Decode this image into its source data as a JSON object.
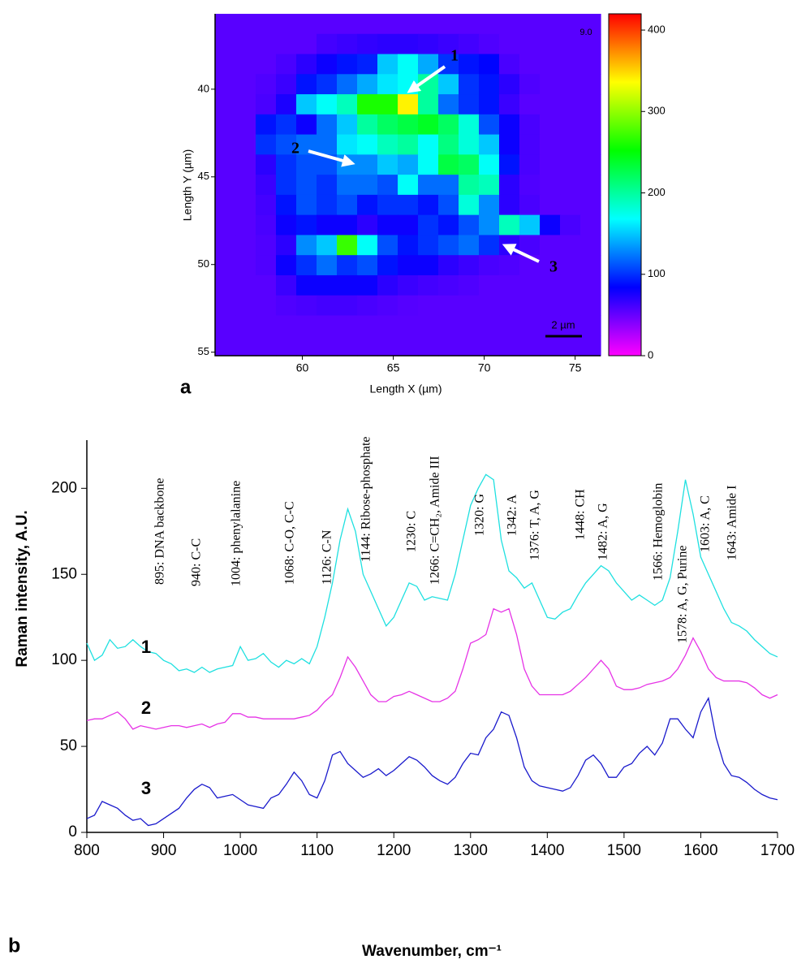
{
  "chart_data": [
    {
      "type": "heatmap",
      "panel_label": "a",
      "xlabel": "Length X (µm)",
      "ylabel": "Length Y (µm)",
      "xlim": [
        55.2,
        76.4
      ],
      "ylim": [
        55.2,
        35.7
      ],
      "xticks": [
        60,
        65,
        70,
        75
      ],
      "yticks": [
        40,
        45,
        50,
        55
      ],
      "z": [
        [
          55,
          55,
          55,
          55,
          55,
          55,
          55,
          55,
          55,
          55,
          55,
          55,
          55,
          55,
          55,
          55,
          55,
          55,
          55
        ],
        [
          55,
          55,
          55,
          55,
          55,
          62,
          65,
          68,
          70,
          70,
          68,
          65,
          62,
          58,
          55,
          55,
          55,
          55,
          55
        ],
        [
          55,
          55,
          55,
          60,
          70,
          80,
          90,
          95,
          150,
          170,
          140,
          100,
          90,
          85,
          60,
          55,
          55,
          55,
          55
        ],
        [
          55,
          55,
          58,
          65,
          90,
          100,
          120,
          140,
          160,
          170,
          200,
          150,
          100,
          90,
          70,
          58,
          55,
          55,
          55
        ],
        [
          55,
          55,
          60,
          75,
          150,
          170,
          190,
          260,
          260,
          340,
          200,
          120,
          100,
          90,
          65,
          55,
          55,
          55,
          55
        ],
        [
          55,
          55,
          90,
          100,
          80,
          120,
          150,
          200,
          220,
          230,
          240,
          220,
          180,
          110,
          80,
          60,
          55,
          55,
          55
        ],
        [
          55,
          55,
          100,
          110,
          120,
          120,
          160,
          170,
          190,
          200,
          170,
          210,
          180,
          150,
          80,
          60,
          55,
          55,
          55
        ],
        [
          55,
          55,
          70,
          100,
          110,
          110,
          130,
          130,
          150,
          140,
          170,
          230,
          220,
          170,
          90,
          60,
          55,
          55,
          55
        ],
        [
          55,
          55,
          65,
          100,
          110,
          100,
          120,
          120,
          110,
          170,
          120,
          120,
          200,
          190,
          70,
          58,
          55,
          55,
          55
        ],
        [
          55,
          55,
          62,
          90,
          110,
          100,
          110,
          90,
          100,
          100,
          90,
          110,
          180,
          130,
          70,
          60,
          55,
          55,
          55
        ],
        [
          55,
          55,
          60,
          80,
          90,
          80,
          80,
          70,
          80,
          80,
          100,
          90,
          110,
          130,
          190,
          150,
          80,
          60,
          55
        ],
        [
          55,
          55,
          58,
          70,
          130,
          150,
          270,
          170,
          110,
          90,
          100,
          110,
          120,
          100,
          70,
          60,
          55,
          55,
          55
        ],
        [
          55,
          55,
          58,
          80,
          100,
          120,
          100,
          110,
          90,
          80,
          80,
          70,
          65,
          60,
          58,
          55,
          55,
          55,
          55
        ],
        [
          55,
          55,
          55,
          65,
          80,
          80,
          80,
          80,
          70,
          65,
          62,
          60,
          58,
          55,
          55,
          55,
          55,
          55,
          55
        ],
        [
          55,
          55,
          55,
          58,
          60,
          62,
          62,
          60,
          58,
          56,
          55,
          55,
          55,
          55,
          55,
          55,
          55,
          55,
          55
        ],
        [
          55,
          55,
          55,
          55,
          55,
          55,
          55,
          55,
          55,
          55,
          55,
          55,
          55,
          55,
          55,
          55,
          55,
          55,
          55
        ],
        [
          55,
          55,
          55,
          55,
          55,
          55,
          55,
          55,
          55,
          55,
          55,
          55,
          55,
          55,
          55,
          55,
          55,
          55,
          55
        ]
      ],
      "clim": [
        0,
        420
      ],
      "cticks": [
        0,
        100,
        200,
        300,
        400
      ],
      "colormap": [
        "#ff00ff",
        "#0000ff",
        "#00ffff",
        "#00ff00",
        "#ffff00",
        "#ff0000"
      ],
      "corner_text": "9.0",
      "scale_bar": "2 µm",
      "arrow_labels": [
        "1",
        "2",
        "3"
      ]
    },
    {
      "type": "line",
      "panel_label": "b",
      "xlabel": "Wavenumber, cm⁻¹",
      "ylabel": "Raman intensity, A.U.",
      "xlim": [
        800,
        1700
      ],
      "ylim": [
        0,
        228
      ],
      "xticks": [
        800,
        900,
        1000,
        1100,
        1200,
        1300,
        1400,
        1500,
        1600,
        1700
      ],
      "yticks": [
        0,
        50,
        100,
        150,
        200
      ],
      "x": [
        800,
        810,
        820,
        830,
        840,
        850,
        860,
        870,
        880,
        890,
        900,
        910,
        920,
        930,
        940,
        950,
        960,
        970,
        980,
        990,
        1000,
        1010,
        1020,
        1030,
        1040,
        1050,
        1060,
        1070,
        1080,
        1090,
        1100,
        1110,
        1120,
        1130,
        1140,
        1150,
        1160,
        1170,
        1180,
        1190,
        1200,
        1210,
        1220,
        1230,
        1240,
        1250,
        1260,
        1270,
        1280,
        1290,
        1300,
        1310,
        1320,
        1330,
        1340,
        1350,
        1360,
        1370,
        1380,
        1390,
        1400,
        1410,
        1420,
        1430,
        1440,
        1450,
        1460,
        1470,
        1480,
        1490,
        1500,
        1510,
        1520,
        1530,
        1540,
        1550,
        1560,
        1570,
        1580,
        1590,
        1600,
        1610,
        1620,
        1630,
        1640,
        1650,
        1660,
        1670,
        1680,
        1690,
        1700
      ],
      "series": [
        {
          "name": "1",
          "color": "#1ee0e0",
          "values": [
            110,
            100,
            103,
            112,
            107,
            108,
            112,
            108,
            105,
            104,
            100,
            98,
            94,
            95,
            93,
            96,
            93,
            95,
            96,
            97,
            108,
            100,
            101,
            104,
            99,
            96,
            100,
            98,
            101,
            98,
            108,
            125,
            145,
            170,
            188,
            175,
            150,
            140,
            130,
            120,
            125,
            135,
            145,
            143,
            135,
            137,
            136,
            135,
            150,
            170,
            190,
            200,
            208,
            205,
            170,
            152,
            148,
            142,
            145,
            135,
            125,
            124,
            128,
            130,
            138,
            145,
            150,
            155,
            152,
            145,
            140,
            135,
            138,
            135,
            132,
            135,
            148,
            175,
            205,
            185,
            160,
            150,
            140,
            130,
            122,
            120,
            117,
            112,
            108,
            104,
            102
          ]
        },
        {
          "name": "2",
          "color": "#e633e6",
          "values": [
            65,
            66,
            66,
            68,
            70,
            66,
            60,
            62,
            61,
            60,
            61,
            62,
            62,
            61,
            62,
            63,
            61,
            63,
            64,
            69,
            69,
            67,
            67,
            66,
            66,
            66,
            66,
            66,
            67,
            68,
            71,
            76,
            80,
            90,
            102,
            96,
            88,
            80,
            76,
            76,
            79,
            80,
            82,
            80,
            78,
            76,
            76,
            78,
            82,
            95,
            110,
            112,
            115,
            130,
            128,
            130,
            115,
            95,
            85,
            80,
            80,
            80,
            80,
            82,
            86,
            90,
            95,
            100,
            95,
            85,
            83,
            83,
            84,
            86,
            87,
            88,
            90,
            95,
            103,
            113,
            105,
            95,
            90,
            88,
            88,
            88,
            87,
            84,
            80,
            78,
            80
          ]
        },
        {
          "name": "3",
          "color": "#1a1acc",
          "values": [
            8,
            10,
            18,
            16,
            14,
            10,
            7,
            8,
            4,
            5,
            8,
            11,
            14,
            20,
            25,
            28,
            26,
            20,
            21,
            22,
            19,
            16,
            15,
            14,
            20,
            22,
            28,
            35,
            30,
            22,
            20,
            30,
            45,
            47,
            40,
            36,
            32,
            34,
            37,
            33,
            36,
            40,
            44,
            42,
            38,
            33,
            30,
            28,
            32,
            40,
            46,
            45,
            55,
            60,
            70,
            68,
            55,
            38,
            30,
            27,
            26,
            25,
            24,
            26,
            33,
            42,
            45,
            40,
            32,
            32,
            38,
            40,
            46,
            50,
            45,
            52,
            66,
            66,
            60,
            55,
            70,
            78,
            55,
            40,
            33,
            32,
            29,
            25,
            22,
            20,
            19
          ]
        }
      ],
      "annotations": [
        "895: DNA backbone",
        "940: C-C",
        "1004: phenylalanine",
        "1068: C-O, C-C",
        "1126: C-N",
        "1144: Ribose-phosphate",
        "1230: C",
        "1266: C=CH₂, Amide III",
        "1320: G",
        "1342: A",
        "1376: T, A, G",
        "1448: CH",
        "1482: A, G",
        "1566: Hemoglobin",
        "1578: A, G, Purine",
        "1603: A, C",
        "1643: Amide I"
      ]
    }
  ]
}
